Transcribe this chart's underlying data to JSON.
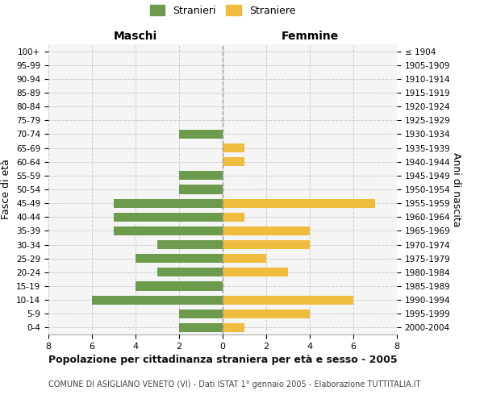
{
  "age_groups": [
    "100+",
    "95-99",
    "90-94",
    "85-89",
    "80-84",
    "75-79",
    "70-74",
    "65-69",
    "60-64",
    "55-59",
    "50-54",
    "45-49",
    "40-44",
    "35-39",
    "30-34",
    "25-29",
    "20-24",
    "15-19",
    "10-14",
    "5-9",
    "0-4"
  ],
  "birth_years": [
    "≤ 1904",
    "1905-1909",
    "1910-1914",
    "1915-1919",
    "1920-1924",
    "1925-1929",
    "1930-1934",
    "1935-1939",
    "1940-1944",
    "1945-1949",
    "1950-1954",
    "1955-1959",
    "1960-1964",
    "1965-1969",
    "1970-1974",
    "1975-1979",
    "1980-1984",
    "1985-1989",
    "1990-1994",
    "1995-1999",
    "2000-2004"
  ],
  "maschi": [
    0,
    0,
    0,
    0,
    0,
    0,
    2,
    0,
    0,
    2,
    2,
    5,
    5,
    5,
    3,
    4,
    3,
    4,
    6,
    2,
    2
  ],
  "femmine": [
    0,
    0,
    0,
    0,
    0,
    0,
    0,
    1,
    1,
    0,
    0,
    7,
    1,
    4,
    4,
    2,
    3,
    0,
    6,
    4,
    1
  ],
  "maschi_color": "#6d9b4e",
  "femmine_color": "#f0bc3e",
  "xlim": 8,
  "title": "Popolazione per cittadinanza straniera per età e sesso - 2005",
  "subtitle": "COMUNE DI ASIGLIANO VENETO (VI) - Dati ISTAT 1° gennaio 2005 - Elaborazione TUTTITALIA.IT",
  "ylabel_left": "Fasce di età",
  "ylabel_right": "Anni di nascita",
  "legend_maschi": "Stranieri",
  "legend_femmine": "Straniere",
  "maschi_label": "Maschi",
  "femmine_label": "Femmine",
  "background_color": "#ffffff",
  "plot_bg_color": "#f5f5f5",
  "grid_color": "#cccccc"
}
